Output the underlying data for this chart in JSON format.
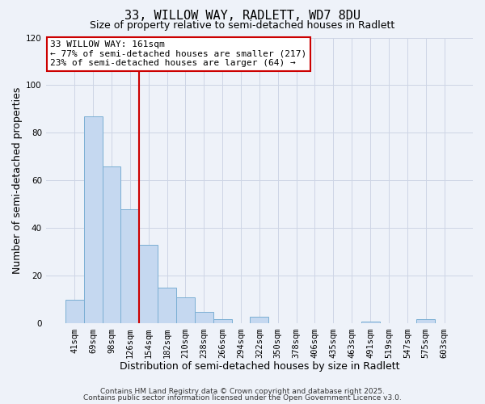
{
  "title1": "33, WILLOW WAY, RADLETT, WD7 8DU",
  "title2": "Size of property relative to semi-detached houses in Radlett",
  "xlabel": "Distribution of semi-detached houses by size in Radlett",
  "ylabel": "Number of semi-detached properties",
  "bar_labels": [
    "41sqm",
    "69sqm",
    "98sqm",
    "126sqm",
    "154sqm",
    "182sqm",
    "210sqm",
    "238sqm",
    "266sqm",
    "294sqm",
    "322sqm",
    "350sqm",
    "378sqm",
    "406sqm",
    "435sqm",
    "463sqm",
    "491sqm",
    "519sqm",
    "547sqm",
    "575sqm",
    "603sqm"
  ],
  "bar_values": [
    10,
    87,
    66,
    48,
    33,
    15,
    11,
    5,
    2,
    0,
    3,
    0,
    0,
    0,
    0,
    0,
    1,
    0,
    0,
    2,
    0
  ],
  "bar_color": "#c5d8f0",
  "bar_edge_color": "#7bafd4",
  "background_color": "#eef2f9",
  "grid_color": "#cdd5e5",
  "ylim": [
    0,
    120
  ],
  "yticks": [
    0,
    20,
    40,
    60,
    80,
    100,
    120
  ],
  "vline_x": 3.5,
  "vline_color": "#cc0000",
  "annotation_line1": "33 WILLOW WAY: 161sqm",
  "annotation_line2": "← 77% of semi-detached houses are smaller (217)",
  "annotation_line3": "23% of semi-detached houses are larger (64) →",
  "annotation_box_color": "#cc0000",
  "footer1": "Contains HM Land Registry data © Crown copyright and database right 2025.",
  "footer2": "Contains public sector information licensed under the Open Government Licence v3.0.",
  "title_fontsize": 11,
  "subtitle_fontsize": 9,
  "axis_label_fontsize": 9,
  "tick_fontsize": 7.5,
  "annotation_fontsize": 8,
  "footer_fontsize": 6.5
}
